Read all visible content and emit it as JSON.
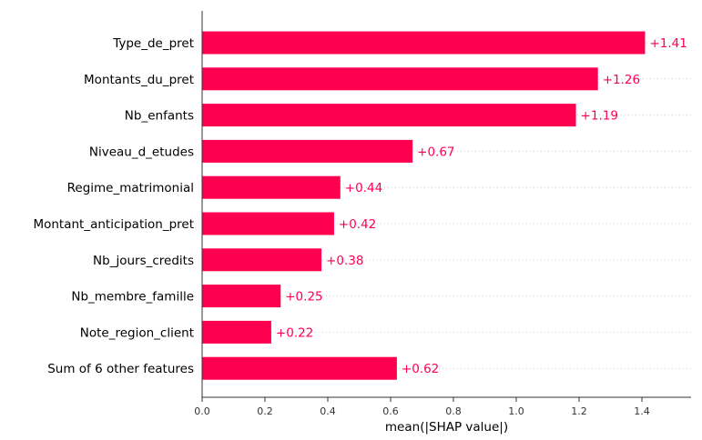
{
  "chart_data": {
    "type": "bar",
    "orientation": "horizontal",
    "categories": [
      "Type_de_pret",
      "Montants_du_pret",
      "Nb_enfants",
      "Niveau_d_etudes",
      "Regime_matrimonial",
      "Montant_anticipation_pret",
      "Nb_jours_credits",
      "Nb_membre_famille",
      "Note_region_client",
      "Sum of 6 other features"
    ],
    "values": [
      1.41,
      1.26,
      1.19,
      0.67,
      0.44,
      0.42,
      0.38,
      0.25,
      0.22,
      0.62
    ],
    "value_labels": [
      "+1.41",
      "+1.26",
      "+1.19",
      "+0.67",
      "+0.44",
      "+0.42",
      "+0.38",
      "+0.25",
      "+0.22",
      "+0.62"
    ],
    "xlabel": "mean(|SHAP value|)",
    "ylabel": "",
    "xlim": [
      0,
      1.55
    ],
    "xticks": [
      "0.0",
      "0.2",
      "0.4",
      "0.6",
      "0.8",
      "1.0",
      "1.2",
      "1.4"
    ],
    "bar_color": "#ff0051",
    "label_color": "#ff0051",
    "gridlines": "dotted horizontal at each bar",
    "legend": "none"
  }
}
